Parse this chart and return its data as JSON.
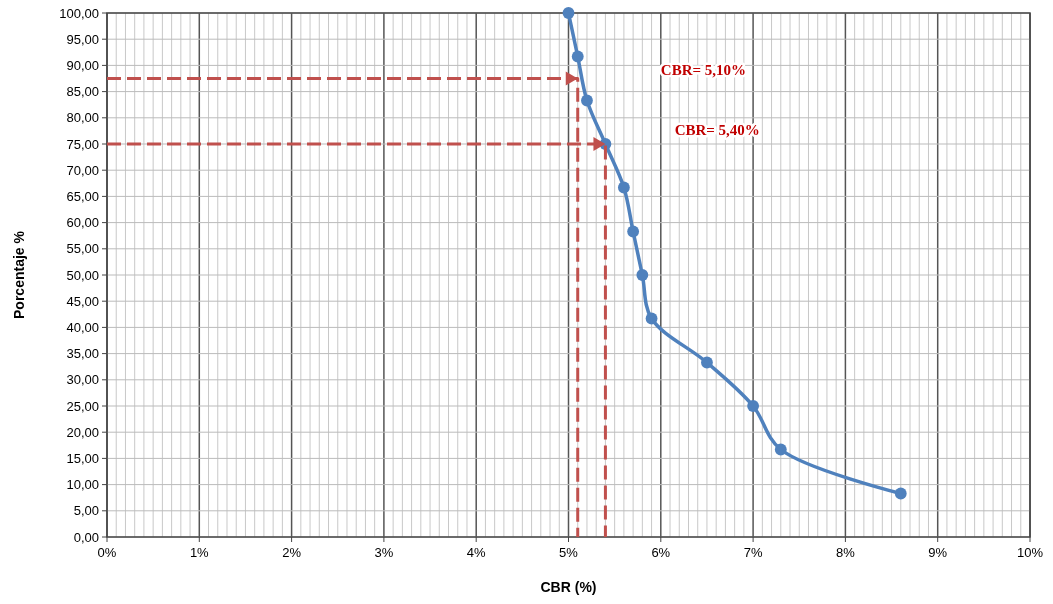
{
  "chart_data": {
    "type": "line",
    "xlabel": "CBR (%)",
    "ylabel": "Porcentaje %",
    "xlim": [
      0,
      10
    ],
    "ylim": [
      0,
      100
    ],
    "xticks": [
      {
        "value": 0,
        "label": "0%"
      },
      {
        "value": 1,
        "label": "1%"
      },
      {
        "value": 2,
        "label": "2%"
      },
      {
        "value": 3,
        "label": "3%"
      },
      {
        "value": 4,
        "label": "4%"
      },
      {
        "value": 5,
        "label": "5%"
      },
      {
        "value": 6,
        "label": "6%"
      },
      {
        "value": 7,
        "label": "7%"
      },
      {
        "value": 8,
        "label": "8%"
      },
      {
        "value": 9,
        "label": "9%"
      },
      {
        "value": 10,
        "label": "10%"
      }
    ],
    "yticks": [
      {
        "value": 0,
        "label": "0,00"
      },
      {
        "value": 5,
        "label": "5,00"
      },
      {
        "value": 10,
        "label": "10,00"
      },
      {
        "value": 15,
        "label": "15,00"
      },
      {
        "value": 20,
        "label": "20,00"
      },
      {
        "value": 25,
        "label": "25,00"
      },
      {
        "value": 30,
        "label": "30,00"
      },
      {
        "value": 35,
        "label": "35,00"
      },
      {
        "value": 40,
        "label": "40,00"
      },
      {
        "value": 45,
        "label": "45,00"
      },
      {
        "value": 50,
        "label": "50,00"
      },
      {
        "value": 55,
        "label": "55,00"
      },
      {
        "value": 60,
        "label": "60,00"
      },
      {
        "value": 65,
        "label": "65,00"
      },
      {
        "value": 70,
        "label": "70,00"
      },
      {
        "value": 75,
        "label": "75,00"
      },
      {
        "value": 80,
        "label": "80,00"
      },
      {
        "value": 85,
        "label": "85,00"
      },
      {
        "value": 90,
        "label": "90,00"
      },
      {
        "value": 95,
        "label": "95,00"
      },
      {
        "value": 100,
        "label": "100,00"
      }
    ],
    "grid": true,
    "marker": "circle",
    "line_style": "solid",
    "series": [
      {
        "color": "#4f81bd",
        "x": [
          5.0,
          5.1,
          5.2,
          5.4,
          5.6,
          5.7,
          5.8,
          5.9,
          6.5,
          7.0,
          7.3,
          8.6
        ],
        "values": [
          100,
          91.7,
          83.3,
          75,
          66.7,
          58.3,
          50,
          41.7,
          33.3,
          25,
          16.7,
          8.3
        ]
      },
      {
        "color": "#c0504d",
        "marker": "none",
        "line_style": "dashed",
        "x": [
          0,
          5.1,
          5.1
        ],
        "values": [
          87.5,
          87.5,
          0
        ]
      },
      {
        "color": "#c0504d",
        "marker": "none",
        "line_style": "dashed",
        "x": [
          0,
          5.4,
          5.4
        ],
        "values": [
          75,
          75,
          0
        ]
      }
    ],
    "annotations": [
      "CBR= 5,10%",
      "CBR= 5,40%"
    ]
  }
}
